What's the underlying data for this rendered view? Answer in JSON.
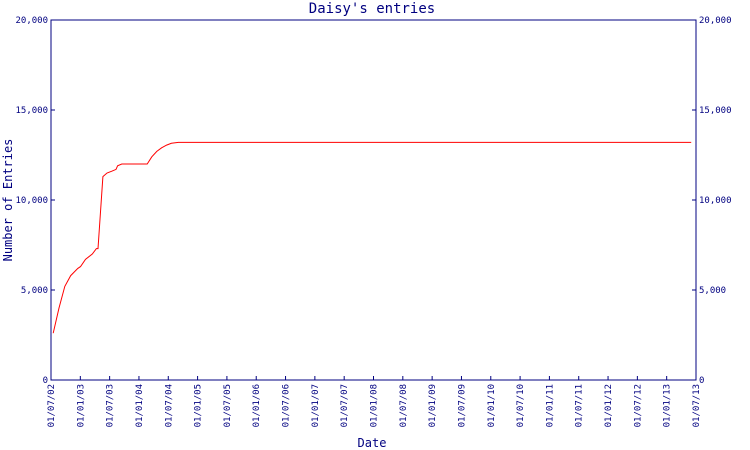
{
  "chart_data": {
    "type": "line",
    "title": "Daisy's entries",
    "xlabel": "Date",
    "ylabel": "Number of Entries",
    "x_tick_labels": [
      "01/07/02",
      "01/01/03",
      "01/07/03",
      "01/01/04",
      "01/07/04",
      "01/01/05",
      "01/07/05",
      "01/01/06",
      "01/07/06",
      "01/01/07",
      "01/07/07",
      "01/01/08",
      "01/07/08",
      "01/01/09",
      "01/07/09",
      "01/01/10",
      "01/07/10",
      "01/01/11",
      "01/07/11",
      "01/01/12",
      "01/07/12",
      "01/01/13",
      "01/07/13"
    ],
    "y_ticks": [
      0,
      5000,
      10000,
      15000,
      20000
    ],
    "y_tick_labels": [
      "0",
      "5,000",
      "10,000",
      "15,000",
      "20,000"
    ],
    "ylim": [
      0,
      20000
    ],
    "xlim": [
      "2002-07-01",
      "2013-07-01"
    ],
    "grid": false,
    "colors": {
      "line": "#ff0000",
      "axis": "#000080",
      "text": "#000080"
    },
    "series": [
      {
        "x": [
          "2002-07-15",
          "2002-08-20",
          "2002-09-25",
          "2002-11-01",
          "2002-12-15",
          "2003-01-01",
          "2003-02-01",
          "2003-03-15",
          "2003-04-10",
          "2003-04-20",
          "2003-05-20",
          "2003-06-15",
          "2003-07-15",
          "2003-08-10",
          "2003-08-20",
          "2003-09-15",
          "2003-11-01",
          "2003-12-15",
          "2004-01-15",
          "2004-02-20",
          "2004-03-20",
          "2004-04-20",
          "2004-05-20",
          "2004-06-20",
          "2004-07-20",
          "2004-09-01",
          "2004-11-01",
          "2005-06-01",
          "2007-01-01",
          "2009-01-01",
          "2011-01-01",
          "2013-01-01",
          "2013-06-01"
        ],
        "values": [
          2600,
          4000,
          5200,
          5800,
          6200,
          6300,
          6700,
          7000,
          7300,
          7300,
          11300,
          11500,
          11600,
          11700,
          11900,
          12000,
          12000,
          12000,
          12000,
          12000,
          12400,
          12700,
          12900,
          13050,
          13150,
          13200,
          13200,
          13200,
          13200,
          13200,
          13200,
          13200,
          13200
        ]
      }
    ]
  }
}
